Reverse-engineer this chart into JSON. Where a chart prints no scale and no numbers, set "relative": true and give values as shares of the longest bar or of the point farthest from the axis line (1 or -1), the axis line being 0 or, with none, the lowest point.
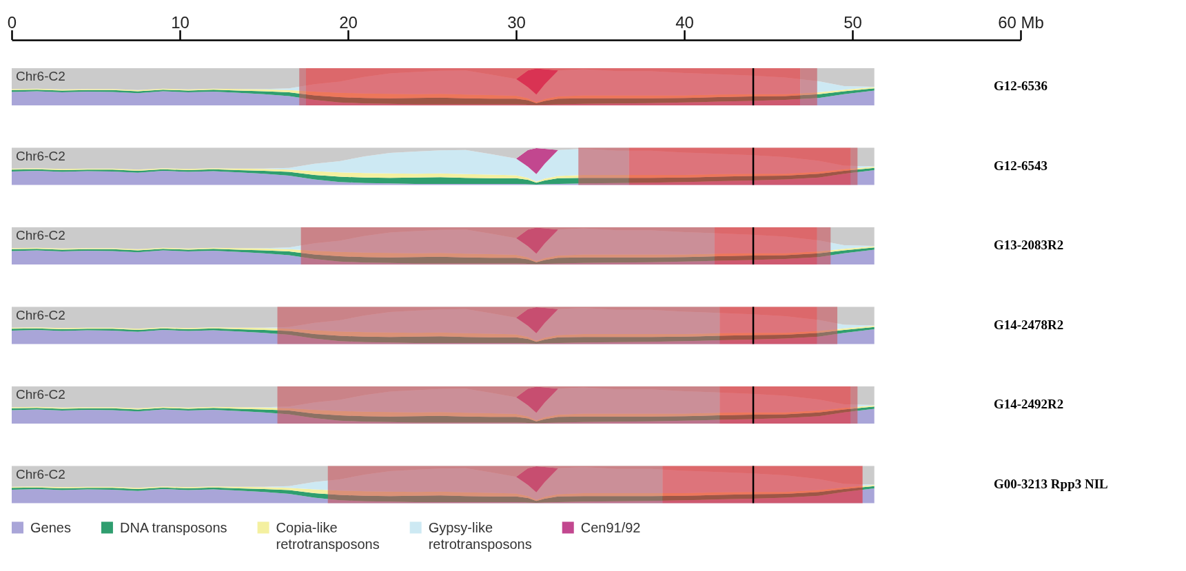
{
  "chart_data": [
    {
      "type": "area",
      "stacked": true,
      "relative": true,
      "title": "G12-6536",
      "annotations": [
        "Chr6-C2"
      ],
      "xlim": [
        0,
        60
      ],
      "xticks": [
        0,
        10,
        20,
        30,
        40,
        50,
        {
          "value": 60,
          "label": "60 Mb"
        }
      ],
      "tick_labels": "x",
      "legend": false,
      "x": [
        0,
        1.5,
        3,
        4.5,
        6,
        7.5,
        9,
        10.5,
        12,
        13.5,
        15,
        16.5,
        18,
        19.5,
        21,
        22.5,
        24,
        25.5,
        27,
        28.5,
        30,
        30.7,
        31.2,
        31.7,
        32.5,
        34,
        36,
        38,
        40,
        42,
        44,
        46,
        48,
        49.5,
        51.3
      ],
      "series": [
        {
          "color": "#a9a5d8",
          "values": [
            0.36,
            0.38,
            0.35,
            0.37,
            0.36,
            0.33,
            0.38,
            0.35,
            0.37,
            0.34,
            0.3,
            0.25,
            0.15,
            0.08,
            0.05,
            0.04,
            0.03,
            0.03,
            0.03,
            0.03,
            0.03,
            0.02,
            0.01,
            0.02,
            0.03,
            0.04,
            0.05,
            0.06,
            0.08,
            0.1,
            0.12,
            0.15,
            0.2,
            0.3,
            0.4
          ]
        },
        {
          "color": "#2f9e6f",
          "values": [
            0.05,
            0.04,
            0.05,
            0.04,
            0.05,
            0.05,
            0.04,
            0.05,
            0.05,
            0.06,
            0.08,
            0.1,
            0.12,
            0.14,
            0.15,
            0.15,
            0.17,
            0.18,
            0.16,
            0.15,
            0.15,
            0.12,
            0.05,
            0.1,
            0.15,
            0.15,
            0.14,
            0.13,
            0.12,
            0.12,
            0.12,
            0.1,
            0.1,
            0.08,
            0.06
          ]
        },
        {
          "color": "#f4f0a0",
          "values": [
            0.03,
            0.03,
            0.03,
            0.03,
            0.03,
            0.03,
            0.03,
            0.03,
            0.03,
            0.04,
            0.05,
            0.06,
            0.1,
            0.12,
            0.12,
            0.12,
            0.1,
            0.1,
            0.1,
            0.1,
            0.08,
            0.05,
            0.03,
            0.05,
            0.06,
            0.08,
            0.08,
            0.08,
            0.07,
            0.07,
            0.06,
            0.05,
            0.05,
            0.04,
            0.03
          ]
        },
        {
          "color": "#cde9f3",
          "values": [
            0,
            0,
            0,
            0,
            0,
            0,
            0,
            0,
            0,
            0,
            0.01,
            0.05,
            0.2,
            0.3,
            0.45,
            0.55,
            0.6,
            0.62,
            0.65,
            0.55,
            0.45,
            0.3,
            0.2,
            0.4,
            0.7,
            0.7,
            0.65,
            0.65,
            0.6,
            0.55,
            0.5,
            0.45,
            0.3,
            0.1,
            0.01
          ]
        },
        {
          "color": "#c2478f",
          "values": [
            0,
            0,
            0,
            0,
            0,
            0,
            0,
            0,
            0,
            0,
            0,
            0,
            0,
            0,
            0,
            0,
            0,
            0,
            0,
            0,
            0,
            0.45,
            0.7,
            0.4,
            0,
            0,
            0,
            0,
            0,
            0,
            0,
            0,
            0,
            0,
            0
          ]
        },
        {
          "color": "#cbcbcb",
          "values": [
            0.56,
            0.55,
            0.57,
            0.56,
            0.56,
            0.59,
            0.55,
            0.57,
            0.55,
            0.56,
            0.56,
            0.54,
            0.43,
            0.36,
            0.23,
            0.14,
            0.1,
            0.07,
            0.06,
            0.17,
            0.29,
            0.06,
            0.01,
            0.03,
            0.06,
            0.03,
            0.08,
            0.08,
            0.13,
            0.16,
            0.2,
            0.25,
            0.35,
            0.48,
            0.5
          ]
        }
      ],
      "bands": [
        {
          "axis": "x",
          "from": 17.1,
          "to": 17.5,
          "color": "#c9545b"
        },
        {
          "axis": "x",
          "from": 17.5,
          "to": 46.9,
          "color": "#e8262c"
        },
        {
          "axis": "x",
          "from": 46.9,
          "to": 47.9,
          "color": "#c9545b"
        }
      ],
      "ref_lines": [
        {
          "axis": "x",
          "value": 44.1,
          "color": "#000000"
        }
      ]
    },
    {
      "type": "area",
      "stacked": true,
      "relative": true,
      "title": "G12-6543",
      "annotations": [
        "Chr6-C2"
      ],
      "xlim": [
        0,
        60
      ],
      "tick_labels": false,
      "legend": false,
      "x": [
        0,
        1.5,
        3,
        4.5,
        6,
        7.5,
        9,
        10.5,
        12,
        13.5,
        15,
        16.5,
        18,
        19.5,
        21,
        22.5,
        24,
        25.5,
        27,
        28.5,
        30,
        30.7,
        31.2,
        31.7,
        32.5,
        34,
        36,
        38,
        40,
        42,
        44,
        46,
        48,
        49.5,
        51.3
      ],
      "series": [
        {
          "color": "#a9a5d8",
          "values": [
            0.36,
            0.38,
            0.35,
            0.37,
            0.36,
            0.33,
            0.38,
            0.35,
            0.37,
            0.34,
            0.3,
            0.25,
            0.15,
            0.08,
            0.05,
            0.04,
            0.03,
            0.03,
            0.03,
            0.03,
            0.03,
            0.02,
            0.01,
            0.02,
            0.03,
            0.04,
            0.05,
            0.06,
            0.08,
            0.1,
            0.12,
            0.15,
            0.2,
            0.3,
            0.4
          ]
        },
        {
          "color": "#2f9e6f",
          "values": [
            0.05,
            0.04,
            0.05,
            0.04,
            0.05,
            0.05,
            0.04,
            0.05,
            0.05,
            0.06,
            0.08,
            0.1,
            0.12,
            0.14,
            0.15,
            0.15,
            0.17,
            0.18,
            0.16,
            0.15,
            0.15,
            0.12,
            0.05,
            0.1,
            0.15,
            0.15,
            0.14,
            0.13,
            0.12,
            0.12,
            0.12,
            0.1,
            0.1,
            0.08,
            0.06
          ]
        },
        {
          "color": "#f4f0a0",
          "values": [
            0.03,
            0.03,
            0.03,
            0.03,
            0.03,
            0.03,
            0.03,
            0.03,
            0.03,
            0.04,
            0.05,
            0.06,
            0.1,
            0.12,
            0.12,
            0.12,
            0.1,
            0.1,
            0.1,
            0.1,
            0.08,
            0.05,
            0.03,
            0.05,
            0.06,
            0.08,
            0.08,
            0.08,
            0.07,
            0.07,
            0.06,
            0.05,
            0.05,
            0.04,
            0.03
          ]
        },
        {
          "color": "#cde9f3",
          "values": [
            0,
            0,
            0,
            0,
            0,
            0,
            0,
            0,
            0,
            0,
            0.01,
            0.05,
            0.2,
            0.3,
            0.45,
            0.55,
            0.6,
            0.62,
            0.65,
            0.55,
            0.45,
            0.3,
            0.2,
            0.4,
            0.7,
            0.7,
            0.65,
            0.65,
            0.6,
            0.55,
            0.5,
            0.45,
            0.3,
            0.1,
            0.01
          ]
        },
        {
          "color": "#c2478f",
          "values": [
            0,
            0,
            0,
            0,
            0,
            0,
            0,
            0,
            0,
            0,
            0,
            0,
            0,
            0,
            0,
            0,
            0,
            0,
            0,
            0,
            0,
            0.45,
            0.7,
            0.4,
            0,
            0,
            0,
            0,
            0,
            0,
            0,
            0,
            0,
            0,
            0
          ]
        },
        {
          "color": "#cbcbcb",
          "values": [
            0.56,
            0.55,
            0.57,
            0.56,
            0.56,
            0.59,
            0.55,
            0.57,
            0.55,
            0.56,
            0.56,
            0.54,
            0.43,
            0.36,
            0.23,
            0.14,
            0.1,
            0.07,
            0.06,
            0.17,
            0.29,
            0.06,
            0.01,
            0.03,
            0.06,
            0.03,
            0.08,
            0.08,
            0.13,
            0.16,
            0.2,
            0.25,
            0.35,
            0.48,
            0.5
          ]
        }
      ],
      "bands": [
        {
          "axis": "x",
          "from": 33.7,
          "to": 36.7,
          "color": "#c9545b"
        },
        {
          "axis": "x",
          "from": 36.7,
          "to": 49.9,
          "color": "#e8262c"
        },
        {
          "axis": "x",
          "from": 49.9,
          "to": 50.3,
          "color": "#c9545b"
        }
      ],
      "ref_lines": [
        {
          "axis": "x",
          "value": 44.1,
          "color": "#000000"
        }
      ]
    },
    {
      "type": "area",
      "stacked": true,
      "relative": true,
      "title": "G13-2083R2",
      "annotations": [
        "Chr6-C2"
      ],
      "xlim": [
        0,
        60
      ],
      "tick_labels": false,
      "legend": false,
      "x": [
        0,
        1.5,
        3,
        4.5,
        6,
        7.5,
        9,
        10.5,
        12,
        13.5,
        15,
        16.5,
        18,
        19.5,
        21,
        22.5,
        24,
        25.5,
        27,
        28.5,
        30,
        30.7,
        31.2,
        31.7,
        32.5,
        34,
        36,
        38,
        40,
        42,
        44,
        46,
        48,
        49.5,
        51.3
      ],
      "series": [
        {
          "color": "#a9a5d8",
          "values": [
            0.36,
            0.38,
            0.35,
            0.37,
            0.36,
            0.33,
            0.38,
            0.35,
            0.37,
            0.34,
            0.3,
            0.25,
            0.15,
            0.08,
            0.05,
            0.04,
            0.03,
            0.03,
            0.03,
            0.03,
            0.03,
            0.02,
            0.01,
            0.02,
            0.03,
            0.04,
            0.05,
            0.06,
            0.08,
            0.1,
            0.12,
            0.15,
            0.2,
            0.3,
            0.4
          ]
        },
        {
          "color": "#2f9e6f",
          "values": [
            0.05,
            0.04,
            0.05,
            0.04,
            0.05,
            0.05,
            0.04,
            0.05,
            0.05,
            0.06,
            0.08,
            0.1,
            0.12,
            0.14,
            0.15,
            0.15,
            0.17,
            0.18,
            0.16,
            0.15,
            0.15,
            0.12,
            0.05,
            0.1,
            0.15,
            0.15,
            0.14,
            0.13,
            0.12,
            0.12,
            0.12,
            0.1,
            0.1,
            0.08,
            0.06
          ]
        },
        {
          "color": "#f4f0a0",
          "values": [
            0.03,
            0.03,
            0.03,
            0.03,
            0.03,
            0.03,
            0.03,
            0.03,
            0.03,
            0.04,
            0.05,
            0.06,
            0.1,
            0.12,
            0.12,
            0.12,
            0.1,
            0.1,
            0.1,
            0.1,
            0.08,
            0.05,
            0.03,
            0.05,
            0.06,
            0.08,
            0.08,
            0.08,
            0.07,
            0.07,
            0.06,
            0.05,
            0.05,
            0.04,
            0.03
          ]
        },
        {
          "color": "#cde9f3",
          "values": [
            0,
            0,
            0,
            0,
            0,
            0,
            0,
            0,
            0,
            0,
            0.01,
            0.05,
            0.2,
            0.3,
            0.45,
            0.55,
            0.6,
            0.62,
            0.65,
            0.55,
            0.45,
            0.3,
            0.2,
            0.4,
            0.7,
            0.7,
            0.65,
            0.65,
            0.6,
            0.55,
            0.5,
            0.45,
            0.3,
            0.1,
            0.01
          ]
        },
        {
          "color": "#c2478f",
          "values": [
            0,
            0,
            0,
            0,
            0,
            0,
            0,
            0,
            0,
            0,
            0,
            0,
            0,
            0,
            0,
            0,
            0,
            0,
            0,
            0,
            0,
            0.45,
            0.7,
            0.4,
            0,
            0,
            0,
            0,
            0,
            0,
            0,
            0,
            0,
            0,
            0
          ]
        },
        {
          "color": "#cbcbcb",
          "values": [
            0.56,
            0.55,
            0.57,
            0.56,
            0.56,
            0.59,
            0.55,
            0.57,
            0.55,
            0.56,
            0.56,
            0.54,
            0.43,
            0.36,
            0.23,
            0.14,
            0.1,
            0.07,
            0.06,
            0.17,
            0.29,
            0.06,
            0.01,
            0.03,
            0.06,
            0.03,
            0.08,
            0.08,
            0.13,
            0.16,
            0.2,
            0.25,
            0.35,
            0.48,
            0.5
          ]
        }
      ],
      "bands": [
        {
          "axis": "x",
          "from": 17.2,
          "to": 41.8,
          "color": "#c9545b"
        },
        {
          "axis": "x",
          "from": 41.8,
          "to": 47.9,
          "color": "#e8262c"
        },
        {
          "axis": "x",
          "from": 47.9,
          "to": 48.7,
          "color": "#c9545b"
        }
      ],
      "ref_lines": [
        {
          "axis": "x",
          "value": 44.1,
          "color": "#000000"
        }
      ]
    },
    {
      "type": "area",
      "stacked": true,
      "relative": true,
      "title": "G14-2478R2",
      "annotations": [
        "Chr6-C2"
      ],
      "xlim": [
        0,
        60
      ],
      "tick_labels": false,
      "legend": false,
      "x": [
        0,
        1.5,
        3,
        4.5,
        6,
        7.5,
        9,
        10.5,
        12,
        13.5,
        15,
        16.5,
        18,
        19.5,
        21,
        22.5,
        24,
        25.5,
        27,
        28.5,
        30,
        30.7,
        31.2,
        31.7,
        32.5,
        34,
        36,
        38,
        40,
        42,
        44,
        46,
        48,
        49.5,
        51.3
      ],
      "series": [
        {
          "color": "#a9a5d8",
          "values": [
            0.36,
            0.38,
            0.35,
            0.37,
            0.36,
            0.33,
            0.38,
            0.35,
            0.37,
            0.34,
            0.3,
            0.25,
            0.15,
            0.08,
            0.05,
            0.04,
            0.03,
            0.03,
            0.03,
            0.03,
            0.03,
            0.02,
            0.01,
            0.02,
            0.03,
            0.04,
            0.05,
            0.06,
            0.08,
            0.1,
            0.12,
            0.15,
            0.2,
            0.3,
            0.4
          ]
        },
        {
          "color": "#2f9e6f",
          "values": [
            0.05,
            0.04,
            0.05,
            0.04,
            0.05,
            0.05,
            0.04,
            0.05,
            0.05,
            0.06,
            0.08,
            0.1,
            0.12,
            0.14,
            0.15,
            0.15,
            0.17,
            0.18,
            0.16,
            0.15,
            0.15,
            0.12,
            0.05,
            0.1,
            0.15,
            0.15,
            0.14,
            0.13,
            0.12,
            0.12,
            0.12,
            0.1,
            0.1,
            0.08,
            0.06
          ]
        },
        {
          "color": "#f4f0a0",
          "values": [
            0.03,
            0.03,
            0.03,
            0.03,
            0.03,
            0.03,
            0.03,
            0.03,
            0.03,
            0.04,
            0.05,
            0.06,
            0.1,
            0.12,
            0.12,
            0.12,
            0.1,
            0.1,
            0.1,
            0.1,
            0.08,
            0.05,
            0.03,
            0.05,
            0.06,
            0.08,
            0.08,
            0.08,
            0.07,
            0.07,
            0.06,
            0.05,
            0.05,
            0.04,
            0.03
          ]
        },
        {
          "color": "#cde9f3",
          "values": [
            0,
            0,
            0,
            0,
            0,
            0,
            0,
            0,
            0,
            0,
            0.01,
            0.05,
            0.2,
            0.3,
            0.45,
            0.55,
            0.6,
            0.62,
            0.65,
            0.55,
            0.45,
            0.3,
            0.2,
            0.4,
            0.7,
            0.7,
            0.65,
            0.65,
            0.6,
            0.55,
            0.5,
            0.45,
            0.3,
            0.1,
            0.01
          ]
        },
        {
          "color": "#c2478f",
          "values": [
            0,
            0,
            0,
            0,
            0,
            0,
            0,
            0,
            0,
            0,
            0,
            0,
            0,
            0,
            0,
            0,
            0,
            0,
            0,
            0,
            0,
            0.45,
            0.7,
            0.4,
            0,
            0,
            0,
            0,
            0,
            0,
            0,
            0,
            0,
            0,
            0
          ]
        },
        {
          "color": "#cbcbcb",
          "values": [
            0.56,
            0.55,
            0.57,
            0.56,
            0.56,
            0.59,
            0.55,
            0.57,
            0.55,
            0.56,
            0.56,
            0.54,
            0.43,
            0.36,
            0.23,
            0.14,
            0.1,
            0.07,
            0.06,
            0.17,
            0.29,
            0.06,
            0.01,
            0.03,
            0.06,
            0.03,
            0.08,
            0.08,
            0.13,
            0.16,
            0.2,
            0.25,
            0.35,
            0.48,
            0.5
          ]
        }
      ],
      "bands": [
        {
          "axis": "x",
          "from": 15.8,
          "to": 42.1,
          "color": "#c9545b"
        },
        {
          "axis": "x",
          "from": 42.1,
          "to": 47.9,
          "color": "#e8262c"
        },
        {
          "axis": "x",
          "from": 47.9,
          "to": 49.1,
          "color": "#c9545b"
        }
      ],
      "ref_lines": [
        {
          "axis": "x",
          "value": 44.1,
          "color": "#000000"
        }
      ]
    },
    {
      "type": "area",
      "stacked": true,
      "relative": true,
      "title": "G14-2492R2",
      "annotations": [
        "Chr6-C2"
      ],
      "xlim": [
        0,
        60
      ],
      "tick_labels": false,
      "legend": false,
      "x": [
        0,
        1.5,
        3,
        4.5,
        6,
        7.5,
        9,
        10.5,
        12,
        13.5,
        15,
        16.5,
        18,
        19.5,
        21,
        22.5,
        24,
        25.5,
        27,
        28.5,
        30,
        30.7,
        31.2,
        31.7,
        32.5,
        34,
        36,
        38,
        40,
        42,
        44,
        46,
        48,
        49.5,
        51.3
      ],
      "series": [
        {
          "color": "#a9a5d8",
          "values": [
            0.36,
            0.38,
            0.35,
            0.37,
            0.36,
            0.33,
            0.38,
            0.35,
            0.37,
            0.34,
            0.3,
            0.25,
            0.15,
            0.08,
            0.05,
            0.04,
            0.03,
            0.03,
            0.03,
            0.03,
            0.03,
            0.02,
            0.01,
            0.02,
            0.03,
            0.04,
            0.05,
            0.06,
            0.08,
            0.1,
            0.12,
            0.15,
            0.2,
            0.3,
            0.4
          ]
        },
        {
          "color": "#2f9e6f",
          "values": [
            0.05,
            0.04,
            0.05,
            0.04,
            0.05,
            0.05,
            0.04,
            0.05,
            0.05,
            0.06,
            0.08,
            0.1,
            0.12,
            0.14,
            0.15,
            0.15,
            0.17,
            0.18,
            0.16,
            0.15,
            0.15,
            0.12,
            0.05,
            0.1,
            0.15,
            0.15,
            0.14,
            0.13,
            0.12,
            0.12,
            0.12,
            0.1,
            0.1,
            0.08,
            0.06
          ]
        },
        {
          "color": "#f4f0a0",
          "values": [
            0.03,
            0.03,
            0.03,
            0.03,
            0.03,
            0.03,
            0.03,
            0.03,
            0.03,
            0.04,
            0.05,
            0.06,
            0.1,
            0.12,
            0.12,
            0.12,
            0.1,
            0.1,
            0.1,
            0.1,
            0.08,
            0.05,
            0.03,
            0.05,
            0.06,
            0.08,
            0.08,
            0.08,
            0.07,
            0.07,
            0.06,
            0.05,
            0.05,
            0.04,
            0.03
          ]
        },
        {
          "color": "#cde9f3",
          "values": [
            0,
            0,
            0,
            0,
            0,
            0,
            0,
            0,
            0,
            0,
            0.01,
            0.05,
            0.2,
            0.3,
            0.45,
            0.55,
            0.6,
            0.62,
            0.65,
            0.55,
            0.45,
            0.3,
            0.2,
            0.4,
            0.7,
            0.7,
            0.65,
            0.65,
            0.6,
            0.55,
            0.5,
            0.45,
            0.3,
            0.1,
            0.01
          ]
        },
        {
          "color": "#c2478f",
          "values": [
            0,
            0,
            0,
            0,
            0,
            0,
            0,
            0,
            0,
            0,
            0,
            0,
            0,
            0,
            0,
            0,
            0,
            0,
            0,
            0,
            0,
            0.45,
            0.7,
            0.4,
            0,
            0,
            0,
            0,
            0,
            0,
            0,
            0,
            0,
            0,
            0
          ]
        },
        {
          "color": "#cbcbcb",
          "values": [
            0.56,
            0.55,
            0.57,
            0.56,
            0.56,
            0.59,
            0.55,
            0.57,
            0.55,
            0.56,
            0.56,
            0.54,
            0.43,
            0.36,
            0.23,
            0.14,
            0.1,
            0.07,
            0.06,
            0.17,
            0.29,
            0.06,
            0.01,
            0.03,
            0.06,
            0.03,
            0.08,
            0.08,
            0.13,
            0.16,
            0.2,
            0.25,
            0.35,
            0.48,
            0.5
          ]
        }
      ],
      "bands": [
        {
          "axis": "x",
          "from": 15.8,
          "to": 42.1,
          "color": "#c9545b"
        },
        {
          "axis": "x",
          "from": 42.1,
          "to": 49.9,
          "color": "#e8262c"
        },
        {
          "axis": "x",
          "from": 49.9,
          "to": 50.3,
          "color": "#c9545b"
        }
      ],
      "ref_lines": [
        {
          "axis": "x",
          "value": 44.1,
          "color": "#000000"
        }
      ]
    },
    {
      "type": "area",
      "stacked": true,
      "relative": true,
      "title": "G00-3213 Rpp3 NIL",
      "annotations": [
        "Chr6-C2"
      ],
      "xlim": [
        0,
        60
      ],
      "tick_labels": false,
      "legend": "bottom",
      "x": [
        0,
        1.5,
        3,
        4.5,
        6,
        7.5,
        9,
        10.5,
        12,
        13.5,
        15,
        16.5,
        18,
        19.5,
        21,
        22.5,
        24,
        25.5,
        27,
        28.5,
        30,
        30.7,
        31.2,
        31.7,
        32.5,
        34,
        36,
        38,
        40,
        42,
        44,
        46,
        48,
        49.5,
        51.3
      ],
      "series": [
        {
          "name": "Genes",
          "color": "#a9a5d8",
          "values": [
            0.36,
            0.38,
            0.35,
            0.37,
            0.36,
            0.33,
            0.38,
            0.35,
            0.37,
            0.34,
            0.3,
            0.25,
            0.15,
            0.08,
            0.05,
            0.04,
            0.03,
            0.03,
            0.03,
            0.03,
            0.03,
            0.02,
            0.01,
            0.02,
            0.03,
            0.04,
            0.05,
            0.06,
            0.08,
            0.1,
            0.12,
            0.15,
            0.2,
            0.3,
            0.4
          ]
        },
        {
          "name": "DNA transposons",
          "color": "#2f9e6f",
          "values": [
            0.05,
            0.04,
            0.05,
            0.04,
            0.05,
            0.05,
            0.04,
            0.05,
            0.05,
            0.06,
            0.08,
            0.1,
            0.12,
            0.14,
            0.15,
            0.15,
            0.17,
            0.18,
            0.16,
            0.15,
            0.15,
            0.12,
            0.05,
            0.1,
            0.15,
            0.15,
            0.14,
            0.13,
            0.12,
            0.12,
            0.12,
            0.1,
            0.1,
            0.08,
            0.06
          ]
        },
        {
          "name": "Copia-like retrotransposons",
          "color": "#f4f0a0",
          "values": [
            0.03,
            0.03,
            0.03,
            0.03,
            0.03,
            0.03,
            0.03,
            0.03,
            0.03,
            0.04,
            0.05,
            0.06,
            0.1,
            0.12,
            0.12,
            0.12,
            0.1,
            0.1,
            0.1,
            0.1,
            0.08,
            0.05,
            0.03,
            0.05,
            0.06,
            0.08,
            0.08,
            0.08,
            0.07,
            0.07,
            0.06,
            0.05,
            0.05,
            0.04,
            0.03
          ]
        },
        {
          "name": "Gypsy-like retrotransposons",
          "color": "#cde9f3",
          "values": [
            0,
            0,
            0,
            0,
            0,
            0,
            0,
            0,
            0,
            0,
            0.01,
            0.05,
            0.2,
            0.3,
            0.45,
            0.55,
            0.6,
            0.62,
            0.65,
            0.55,
            0.45,
            0.3,
            0.2,
            0.4,
            0.7,
            0.7,
            0.65,
            0.65,
            0.6,
            0.55,
            0.5,
            0.45,
            0.3,
            0.1,
            0.01
          ]
        },
        {
          "name": "Cen91/92",
          "color": "#c2478f",
          "values": [
            0,
            0,
            0,
            0,
            0,
            0,
            0,
            0,
            0,
            0,
            0,
            0,
            0,
            0,
            0,
            0,
            0,
            0,
            0,
            0,
            0,
            0.45,
            0.7,
            0.4,
            0,
            0,
            0,
            0,
            0,
            0,
            0,
            0,
            0,
            0,
            0
          ]
        },
        {
          "color": "#cbcbcb",
          "values": [
            0.56,
            0.55,
            0.57,
            0.56,
            0.56,
            0.59,
            0.55,
            0.57,
            0.55,
            0.56,
            0.56,
            0.54,
            0.43,
            0.36,
            0.23,
            0.14,
            0.1,
            0.07,
            0.06,
            0.17,
            0.29,
            0.06,
            0.01,
            0.03,
            0.06,
            0.03,
            0.08,
            0.08,
            0.13,
            0.16,
            0.2,
            0.25,
            0.35,
            0.48,
            0.5
          ]
        }
      ],
      "bands": [
        {
          "axis": "x",
          "from": 18.8,
          "to": 38.7,
          "color": "#c9545b"
        },
        {
          "axis": "x",
          "from": 38.7,
          "to": 50.6,
          "color": "#e8262c"
        }
      ],
      "ref_lines": [
        {
          "axis": "x",
          "value": 44.1,
          "color": "#000000"
        }
      ]
    }
  ]
}
